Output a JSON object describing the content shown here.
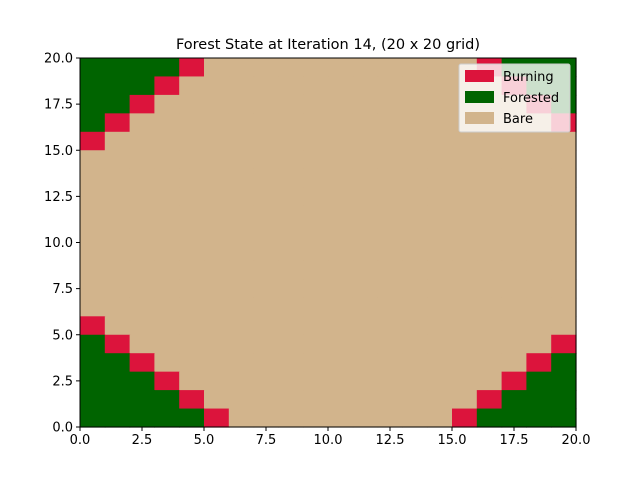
{
  "chart_data": {
    "type": "heatmap",
    "title": "Forest State at Iteration 14, (20 x 20 grid)",
    "xlabel": "",
    "ylabel": "",
    "xlim": [
      0,
      20
    ],
    "ylim": [
      0,
      20
    ],
    "x_ticks": [
      "0.0",
      "2.5",
      "5.0",
      "7.5",
      "10.0",
      "12.5",
      "15.0",
      "17.5",
      "20.0"
    ],
    "y_ticks": [
      "0.0",
      "2.5",
      "5.0",
      "7.5",
      "10.0",
      "12.5",
      "15.0",
      "17.5",
      "20.0"
    ],
    "grid": false,
    "legend_position": "top-right",
    "states": [
      {
        "code": 2,
        "name": "Burning",
        "color": "#dc143c"
      },
      {
        "code": 1,
        "name": "Forested",
        "color": "#006400"
      },
      {
        "code": 0,
        "name": "Bare",
        "color": "#d2b48c"
      }
    ],
    "grid_rows_top_to_bottom": [
      "11112000000000002111",
      "11120000000000000211",
      "11200000000000000021",
      "12000000000000000002",
      "20000000000000000000",
      "00000000000000000000",
      "00000000000000000000",
      "00000000000000000000",
      "00000000000000000000",
      "00000000000000000000",
      "00000000000000000000",
      "00000000000000000000",
      "00000000000000000000",
      "00000000000000000000",
      "20000000000000000000",
      "12000000000000000002",
      "11200000000000000021",
      "11120000000000000211",
      "11112000000000002111",
      "11111200000000021111"
    ]
  }
}
